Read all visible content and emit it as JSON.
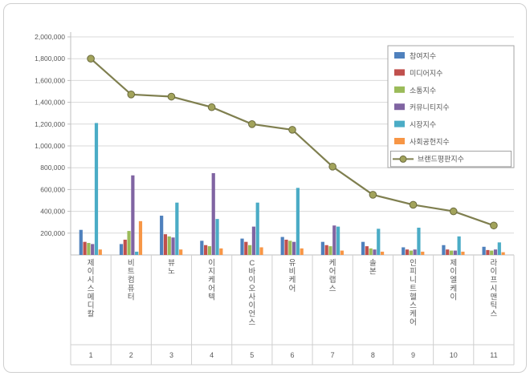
{
  "chart_data": {
    "type": "bar",
    "title": "",
    "categories": [
      "제이시스메디칼",
      "비트컴퓨터",
      "뷰노",
      "이지케어텍",
      "C바이오사이언스",
      "유비케어",
      "케어랩스",
      "솔본",
      "인피니트헬스케어",
      "제이엘케이",
      "라이프시맨틱스"
    ],
    "category_numbers": [
      "1",
      "2",
      "3",
      "4",
      "5",
      "6",
      "7",
      "8",
      "9",
      "10",
      "11"
    ],
    "series": [
      {
        "name": "참여지수",
        "color": "#4F81BD",
        "values": [
          230000,
          100000,
          360000,
          130000,
          150000,
          165000,
          120000,
          120000,
          70000,
          90000,
          75000
        ]
      },
      {
        "name": "미디어지수",
        "color": "#C0504D",
        "values": [
          120000,
          140000,
          190000,
          90000,
          120000,
          140000,
          90000,
          80000,
          50000,
          50000,
          45000
        ]
      },
      {
        "name": "소통지수",
        "color": "#9BBB59",
        "values": [
          110000,
          220000,
          170000,
          80000,
          90000,
          130000,
          80000,
          60000,
          40000,
          40000,
          40000
        ]
      },
      {
        "name": "커뮤니티지수",
        "color": "#8064A2",
        "values": [
          100000,
          730000,
          160000,
          750000,
          260000,
          120000,
          270000,
          50000,
          50000,
          40000,
          50000
        ]
      },
      {
        "name": "시장지수",
        "color": "#4BACC6",
        "values": [
          1210000,
          30000,
          480000,
          330000,
          480000,
          615000,
          260000,
          240000,
          250000,
          170000,
          115000
        ]
      },
      {
        "name": "사회공헌지수",
        "color": "#F79646",
        "values": [
          50000,
          310000,
          50000,
          60000,
          70000,
          60000,
          40000,
          30000,
          30000,
          30000,
          25000
        ]
      }
    ],
    "line_series": {
      "name": "브랜드평판지수",
      "color": "#7F7F4F",
      "marker_color": "#A2A35B",
      "marker_edge": "#6B6B3F",
      "values": [
        1800000,
        1472000,
        1452000,
        1355000,
        1200000,
        1148000,
        810000,
        552000,
        460000,
        400000,
        270000
      ]
    },
    "ylim": [
      0,
      2000000
    ],
    "ytick_step": 200000,
    "grid": true,
    "legend_position": "top-right",
    "axis_color": "#BFBFBF",
    "grid_color": "#D9D9D9",
    "text_color": "#595959"
  }
}
